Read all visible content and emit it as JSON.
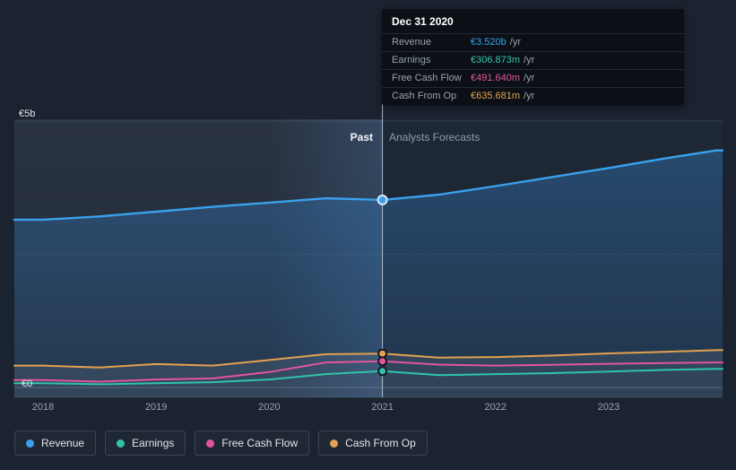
{
  "tooltip": {
    "title": "Dec 31 2020",
    "rows": [
      {
        "label": "Revenue",
        "value": "€3.520b",
        "suffix": "/yr",
        "color": "#2ba7f0"
      },
      {
        "label": "Earnings",
        "value": "€306.873m",
        "suffix": "/yr",
        "color": "#2fc4a8"
      },
      {
        "label": "Free Cash Flow",
        "value": "€491.640m",
        "suffix": "/yr",
        "color": "#e2569b"
      },
      {
        "label": "Cash From Op",
        "value": "€635.681m",
        "suffix": "/yr",
        "color": "#e3a14f"
      }
    ]
  },
  "axis": {
    "y_top": "€5b",
    "y_zero": "€0"
  },
  "annotations": {
    "past": "Past",
    "forecast": "Analysts Forecasts"
  },
  "legend": [
    {
      "label": "Revenue",
      "color": "#3ba1ec"
    },
    {
      "label": "Earnings",
      "color": "#2fc4a8"
    },
    {
      "label": "Free Cash Flow",
      "color": "#e2569b"
    },
    {
      "label": "Cash From Op",
      "color": "#e3a14f"
    }
  ],
  "chart_data": {
    "type": "line",
    "title": "",
    "unit": "EUR, millions per year",
    "x": [
      2018,
      2018.5,
      2019,
      2019.5,
      2020,
      2020.5,
      2021,
      2021.5,
      2022,
      2022.5,
      2023,
      2023.5,
      2023.95
    ],
    "series": [
      {
        "name": "Revenue",
        "color": "#3ba1ec",
        "area": true,
        "values": [
          3150,
          3210,
          3300,
          3390,
          3470,
          3550,
          3520,
          3620,
          3780,
          3950,
          4120,
          4300,
          4450
        ]
      },
      {
        "name": "Earnings",
        "color": "#2fc4a8",
        "values": [
          80,
          60,
          80,
          100,
          150,
          250,
          306.873,
          230,
          250,
          270,
          300,
          330,
          350
        ]
      },
      {
        "name": "Free Cash Flow",
        "color": "#e2569b",
        "values": [
          140,
          110,
          150,
          170,
          290,
          470,
          491.64,
          430,
          410,
          425,
          445,
          460,
          470
        ]
      },
      {
        "name": "Cash From Op",
        "color": "#e3a14f",
        "values": [
          410,
          375,
          440,
          410,
          515,
          625,
          635.681,
          560,
          570,
          600,
          640,
          670,
          700
        ]
      }
    ],
    "xticks": [
      2018,
      2019,
      2020,
      2021,
      2022,
      2023
    ],
    "ytick_labels": [
      "€0",
      "€5b"
    ],
    "ylim": [
      0,
      5000
    ],
    "divider_x": 2021,
    "highlight_band": [
      2020,
      2021
    ],
    "annotations": {
      "past": "Past",
      "forecast": "Analysts Forecasts"
    },
    "legend_position": "bottom",
    "grid": true
  }
}
